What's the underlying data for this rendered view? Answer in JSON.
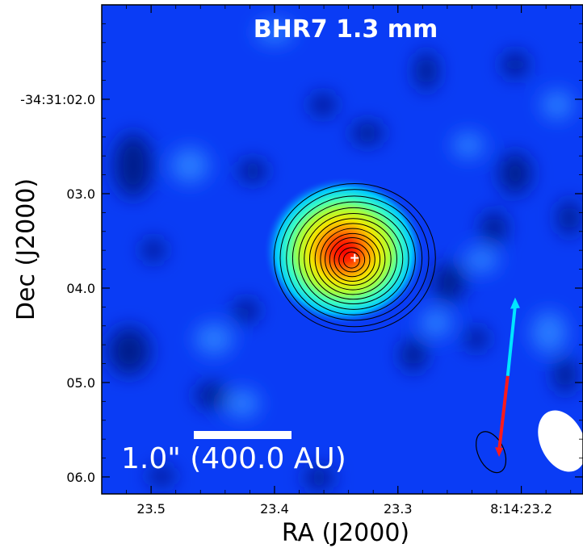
{
  "chart_data": {
    "type": "heatmap",
    "title": "BHR7 1.3 mm",
    "xlabel": "RA (J2000)",
    "ylabel": "Dec (J2000)",
    "x_ticks": [
      {
        "value": 23.5,
        "label": "23.5"
      },
      {
        "value": 23.4,
        "label": "23.4"
      },
      {
        "value": 23.3,
        "label": "23.3"
      },
      {
        "value": 23.2,
        "label": "8:14:23.2"
      }
    ],
    "y_ticks": [
      {
        "value": 2.0,
        "label": "-34:31:02.0"
      },
      {
        "value": 3.0,
        "label": "03.0"
      },
      {
        "value": 4.0,
        "label": "04.0"
      },
      {
        "value": 5.0,
        "label": "05.0"
      },
      {
        "value": 6.0,
        "label": "06.0"
      }
    ],
    "xlim": [
      23.54,
      23.15
    ],
    "ylim": [
      6.18,
      1.0
    ],
    "colormap": "jet",
    "source": {
      "ra_sec": 23.335,
      "dec_sec": 3.68,
      "marker": "+",
      "color": "#ffffff"
    },
    "contour_levels": 14,
    "scale_bar": {
      "label": "1.0\" (400.0 AU)",
      "length_arcsec": 1.0,
      "color": "#ffffff"
    },
    "outflow": {
      "origin": {
        "ra_sec": 23.218,
        "dec_sec": 5.72
      },
      "blue_tip": {
        "ra_sec": 23.205,
        "dec_sec": 4.1
      },
      "red_segment_end": {
        "ra_sec": 23.211,
        "dec_sec": 4.93
      },
      "blue_color": "#00e5ff",
      "red_color": "#ff1a1a"
    },
    "beam": {
      "center": {
        "ra_sec": 23.167,
        "dec_sec": 5.62
      },
      "color": "#ffffff"
    },
    "colors": {
      "background": "#0a3cf5",
      "frame": "#000000"
    }
  }
}
